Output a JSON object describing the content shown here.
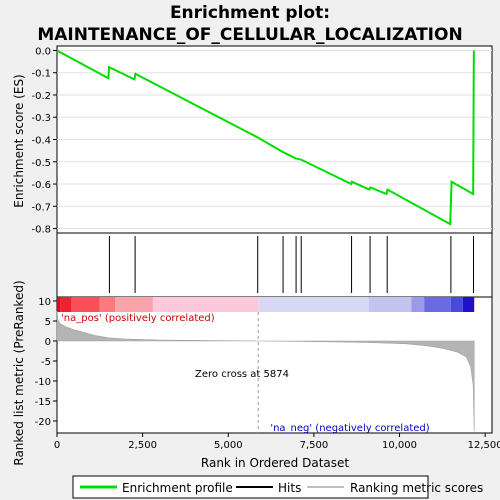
{
  "chart_data": {
    "type": "line",
    "title_line1": "Enrichment plot:",
    "title_line2": "MAINTENANCE_OF_CELLULAR_LOCALIZATION",
    "es_panel": {
      "ylabel": "Enrichment score (ES)",
      "ylim": [
        -0.82,
        0.02
      ],
      "yticks": [
        0.0,
        -0.1,
        -0.2,
        -0.3,
        -0.4,
        -0.5,
        -0.6,
        -0.7,
        -0.8
      ],
      "ytick_labels": [
        "0.0",
        "-0.1",
        "-0.2",
        "-0.3",
        "-0.4",
        "-0.5",
        "-0.6",
        "-0.7",
        "-0.8"
      ],
      "line_color": "#00dd00",
      "profile": [
        [
          0,
          0.0
        ],
        [
          1500,
          -0.125
        ],
        [
          1520,
          -0.075
        ],
        [
          2260,
          -0.13
        ],
        [
          2290,
          -0.105
        ],
        [
          5850,
          -0.39
        ],
        [
          6580,
          -0.455
        ],
        [
          6970,
          -0.485
        ],
        [
          7120,
          -0.49
        ],
        [
          8590,
          -0.6
        ],
        [
          8610,
          -0.59
        ],
        [
          9120,
          -0.625
        ],
        [
          9150,
          -0.615
        ],
        [
          9620,
          -0.645
        ],
        [
          9650,
          -0.625
        ],
        [
          11480,
          -0.78
        ],
        [
          11520,
          -0.59
        ],
        [
          12150,
          -0.645
        ],
        [
          12170,
          0.0
        ]
      ]
    },
    "hits": [
      1530,
      2280,
      5860,
      6600,
      6980,
      7130,
      8600,
      9140,
      9640,
      11500,
      12160
    ],
    "rank_panel": {
      "ylabel": "Ranked list metric (PreRanked)",
      "ylim": [
        -23,
        11
      ],
      "yticks": [
        10,
        5,
        0,
        -5,
        -10,
        -15,
        -20
      ],
      "ytick_labels": [
        "10",
        "5",
        "0",
        "-5",
        "-10",
        "-15",
        "-20"
      ],
      "metric_curve": [
        [
          0,
          7.5
        ],
        [
          30,
          5.2
        ],
        [
          100,
          4.3
        ],
        [
          250,
          3.6
        ],
        [
          500,
          2.8
        ],
        [
          800,
          2.1
        ],
        [
          1100,
          1.4
        ],
        [
          1500,
          0.8
        ],
        [
          2000,
          0.5
        ],
        [
          3000,
          0.25
        ],
        [
          4500,
          0.1
        ],
        [
          5874,
          0
        ],
        [
          7500,
          -0.15
        ],
        [
          9000,
          -0.35
        ],
        [
          10200,
          -0.7
        ],
        [
          10800,
          -1.2
        ],
        [
          11300,
          -1.9
        ],
        [
          11700,
          -2.8
        ],
        [
          11950,
          -4.0
        ],
        [
          12080,
          -6.5
        ],
        [
          12150,
          -11
        ],
        [
          12180,
          -22.5
        ]
      ],
      "zero_cross_label": "Zero cross at 5874",
      "zero_cross": 5874,
      "pos_label": "'na_pos' (positively correlated)",
      "neg_label": "'na_neg' (negatively correlated)"
    },
    "xlabel": "Rank in Ordered Dataset",
    "xlim": [
      0,
      12700
    ],
    "xticks": [
      0,
      2500,
      5000,
      7500,
      10000,
      12500
    ],
    "xtick_labels": [
      "0",
      "2,500",
      "5,000",
      "7,500",
      "10,000",
      "12,500"
    ],
    "heat_bar": [
      {
        "from": 0,
        "to": 90,
        "color": "#e8001a"
      },
      {
        "from": 90,
        "to": 420,
        "color": "#f22035"
      },
      {
        "from": 420,
        "to": 1250,
        "color": "#f7505a"
      },
      {
        "from": 1250,
        "to": 1700,
        "color": "#fa7a80"
      },
      {
        "from": 1700,
        "to": 2800,
        "color": "#fba3aa"
      },
      {
        "from": 2800,
        "to": 5874,
        "color": "#fcc8dc"
      },
      {
        "from": 5874,
        "to": 9100,
        "color": "#d8d8f5"
      },
      {
        "from": 9100,
        "to": 10350,
        "color": "#c3c3ef"
      },
      {
        "from": 10350,
        "to": 10720,
        "color": "#9a9ae8"
      },
      {
        "from": 10720,
        "to": 11500,
        "color": "#6b6be0"
      },
      {
        "from": 11500,
        "to": 11850,
        "color": "#4a4ad8"
      },
      {
        "from": 11850,
        "to": 12180,
        "color": "#2010c8"
      }
    ],
    "legend": [
      {
        "label": "Enrichment profile",
        "kind": "line",
        "color": "#00dd00"
      },
      {
        "label": "Hits",
        "kind": "line",
        "color": "#000000"
      },
      {
        "label": "Ranking metric scores",
        "kind": "line",
        "color": "#c0c0c0"
      }
    ]
  }
}
